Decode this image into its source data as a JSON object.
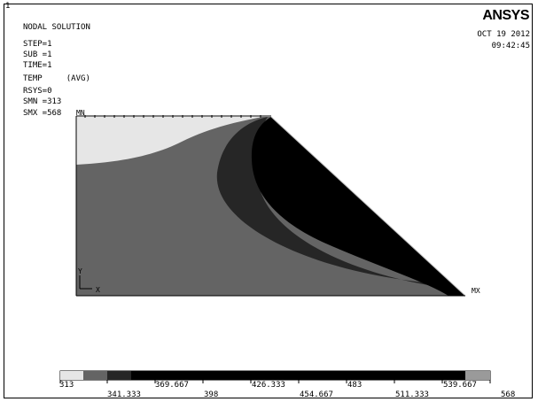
{
  "window": {
    "number": "1"
  },
  "brand": {
    "name": "ANSYS"
  },
  "header": {
    "title": "NODAL SOLUTION",
    "date": "OCT 19 2012",
    "time": "09:42:45",
    "params": [
      "STEP=1",
      "SUB =1",
      "TIME=1",
      "TEMP     (AVG)",
      "RSYS=0",
      "SMN =313",
      "SMX =568"
    ]
  },
  "plot": {
    "min_marker": "MN",
    "max_marker": "MX",
    "axis_y": "Y",
    "axis_x": "X"
  },
  "legend": {
    "top_labels": [
      "313",
      "369.667",
      "426.333",
      "483",
      "539.667"
    ],
    "bottom_labels": [
      "341.333",
      "398",
      "454.667",
      "511.333",
      "568"
    ],
    "band_colors": [
      "#e6e6e6",
      "#646464",
      "#262626",
      "#000000",
      "#000000",
      "#000000",
      "#000000",
      "#000000",
      "#9a9a9a"
    ]
  },
  "colors": {
    "band_light": "#e6e6e6",
    "band_mid": "#646464",
    "band_dark": "#262626",
    "band_black": "#000000"
  }
}
